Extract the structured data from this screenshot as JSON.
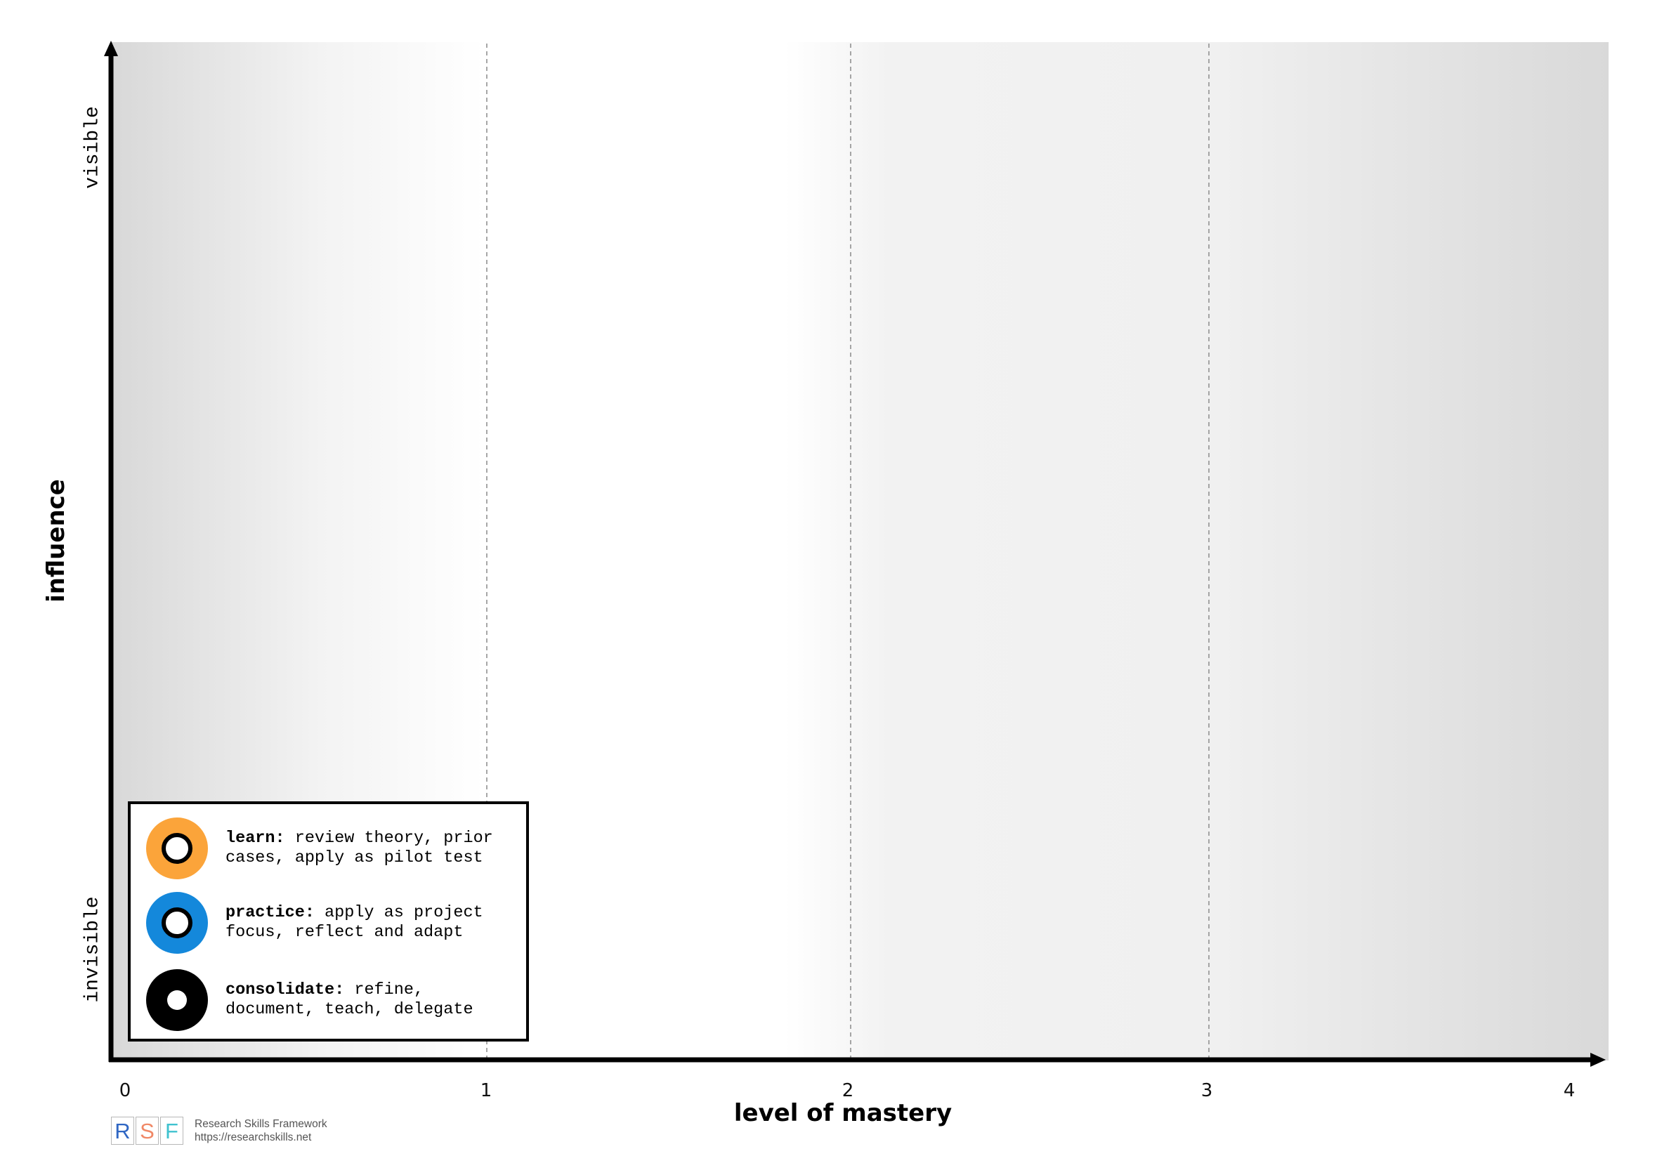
{
  "axes": {
    "x_title": "level of mastery",
    "y_title": "influence",
    "y_low_label": "invisible",
    "y_high_label": "visible",
    "x_ticks": [
      "0",
      "1",
      "2",
      "3",
      "4"
    ]
  },
  "legend": {
    "items": [
      {
        "term": "learn:",
        "description": " review theory, prior\ncases, apply as pilot test",
        "color": "#FBA43A",
        "style": "ring"
      },
      {
        "term": "practice:",
        "description": " apply as project\nfocus, reflect and adapt",
        "color": "#1488DB",
        "style": "ring"
      },
      {
        "term": "consolidate:",
        "description": " refine,\ndocument, teach, delegate",
        "color": "#000000",
        "style": "dot"
      }
    ]
  },
  "branding": {
    "letters": [
      {
        "char": "R",
        "color": "#2F66C3"
      },
      {
        "char": "S",
        "color": "#F08866"
      },
      {
        "char": "F",
        "color": "#3FC2CF"
      }
    ],
    "name": "Research Skills Framework",
    "url": "https://researchskills.net"
  },
  "colors": {
    "axis": "#000000",
    "gridline": "#8a8a8a"
  }
}
